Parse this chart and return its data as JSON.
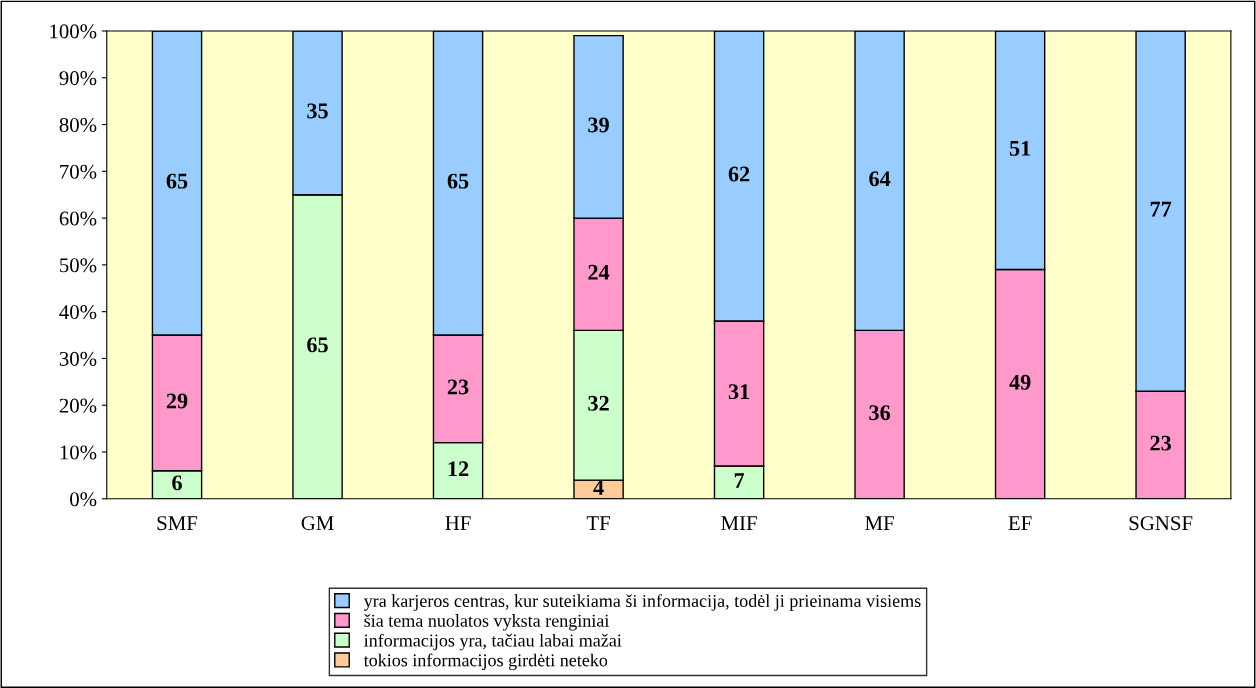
{
  "chart_data": {
    "type": "bar",
    "stacked": true,
    "data_labels": true,
    "legend": "bottom",
    "grid": false,
    "categories": [
      "SMF",
      "GM",
      "HF",
      "TF",
      "MIF",
      "MF",
      "EF",
      "SGNSF"
    ],
    "ylim": [
      0,
      100
    ],
    "yticks": [
      {
        "value": 0,
        "label": "0%"
      },
      {
        "value": 10,
        "label": "10%"
      },
      {
        "value": 20,
        "label": "20%"
      },
      {
        "value": 30,
        "label": "30%"
      },
      {
        "value": 40,
        "label": "40%"
      },
      {
        "value": 50,
        "label": "50%"
      },
      {
        "value": 60,
        "label": "60%"
      },
      {
        "value": 70,
        "label": "70%"
      },
      {
        "value": 80,
        "label": "80%"
      },
      {
        "value": 90,
        "label": "90%"
      },
      {
        "value": 100,
        "label": "100%"
      }
    ],
    "series": [
      {
        "name": "tokios informacijos girdėti neteko",
        "color": "#ffcc99",
        "values": [
          null,
          null,
          null,
          4,
          null,
          null,
          null,
          null
        ]
      },
      {
        "name": "informacijos yra, tačiau labai mažai",
        "color": "#ccffcc",
        "values": [
          6,
          65,
          12,
          32,
          7,
          null,
          null,
          null
        ]
      },
      {
        "name": "šia tema nuolatos vyksta renginiai",
        "color": "#ff99cc",
        "values": [
          29,
          null,
          23,
          24,
          31,
          36,
          49,
          23
        ]
      },
      {
        "name": "yra karjeros centras, kur suteikiama ši informacija, todėl ji prieinama visiems",
        "color": "#99ccff",
        "values": [
          65,
          35,
          65,
          39,
          62,
          64,
          51,
          77
        ]
      }
    ]
  }
}
